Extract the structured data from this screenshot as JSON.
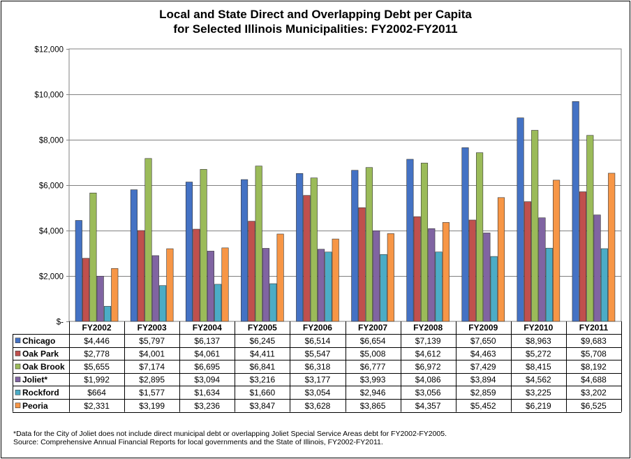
{
  "title": {
    "line1": "Local and State Direct and Overlapping Debt per Capita",
    "line2": "for Selected Illinois Municipalities: FY2002-FY2011"
  },
  "footnote": "*Data for the City of Joliet does not include direct municipal debt or overlapping Joliet Special Service Areas debt for FY2002-FY2005.",
  "source": "Source: Comprehensive Annual Financial Reports for local governments and the State of Illinois, FY2002-FY2011.",
  "chart_data": {
    "type": "bar",
    "title": "Local and State Direct and Overlapping Debt per Capita for Selected Illinois Municipalities: FY2002-FY2011",
    "categories": [
      "FY2002",
      "FY2003",
      "FY2004",
      "FY2005",
      "FY2006",
      "FY2007",
      "FY2008",
      "FY2009",
      "FY2010",
      "FY2011"
    ],
    "ylim": [
      0,
      12000
    ],
    "y_ticks": [
      0,
      2000,
      4000,
      6000,
      8000,
      10000,
      12000
    ],
    "y_tick_labels": [
      "$-",
      "$2,000",
      "$4,000",
      "$6,000",
      "$8,000",
      "$10,000",
      "$12,000"
    ],
    "grid": true,
    "legend": "data table below chart",
    "series": [
      {
        "name": "Chicago",
        "color": "#4472C4",
        "values": [
          4446,
          5797,
          6137,
          6245,
          6514,
          6654,
          7139,
          7650,
          8963,
          9683
        ],
        "labels": [
          "$4,446",
          "$5,797",
          "$6,137",
          "$6,245",
          "$6,514",
          "$6,654",
          "$7,139",
          "$7,650",
          "$8,963",
          "$9,683"
        ]
      },
      {
        "name": "Oak Park",
        "color": "#C0504D",
        "values": [
          2778,
          4001,
          4061,
          4411,
          5547,
          5008,
          4612,
          4463,
          5272,
          5708
        ],
        "labels": [
          "$2,778",
          "$4,001",
          "$4,061",
          "$4,411",
          "$5,547",
          "$5,008",
          "$4,612",
          "$4,463",
          "$5,272",
          "$5,708"
        ]
      },
      {
        "name": "Oak Brook",
        "color": "#9BBB59",
        "values": [
          5655,
          7174,
          6695,
          6841,
          6318,
          6777,
          6972,
          7429,
          8415,
          8192
        ],
        "labels": [
          "$5,655",
          "$7,174",
          "$6,695",
          "$6,841",
          "$6,318",
          "$6,777",
          "$6,972",
          "$7,429",
          "$8,415",
          "$8,192"
        ]
      },
      {
        "name": "Joliet*",
        "color": "#8064A2",
        "values": [
          1992,
          2895,
          3094,
          3216,
          3177,
          3993,
          4086,
          3894,
          4562,
          4688
        ],
        "labels": [
          "$1,992",
          "$2,895",
          "$3,094",
          "$3,216",
          "$3,177",
          "$3,993",
          "$4,086",
          "$3,894",
          "$4,562",
          "$4,688"
        ]
      },
      {
        "name": "Rockford",
        "color": "#4BACC6",
        "values": [
          664,
          1577,
          1634,
          1660,
          3054,
          2946,
          3056,
          2859,
          3225,
          3202
        ],
        "labels": [
          "$664",
          "$1,577",
          "$1,634",
          "$1,660",
          "$3,054",
          "$2,946",
          "$3,056",
          "$2,859",
          "$3,225",
          "$3,202"
        ]
      },
      {
        "name": "Peoria",
        "color": "#F79646",
        "values": [
          2331,
          3199,
          3236,
          3847,
          3628,
          3865,
          4357,
          5452,
          6219,
          6525
        ],
        "labels": [
          "$2,331",
          "$3,199",
          "$3,236",
          "$3,847",
          "$3,628",
          "$3,865",
          "$4,357",
          "$5,452",
          "$6,219",
          "$6,525"
        ]
      }
    ]
  }
}
